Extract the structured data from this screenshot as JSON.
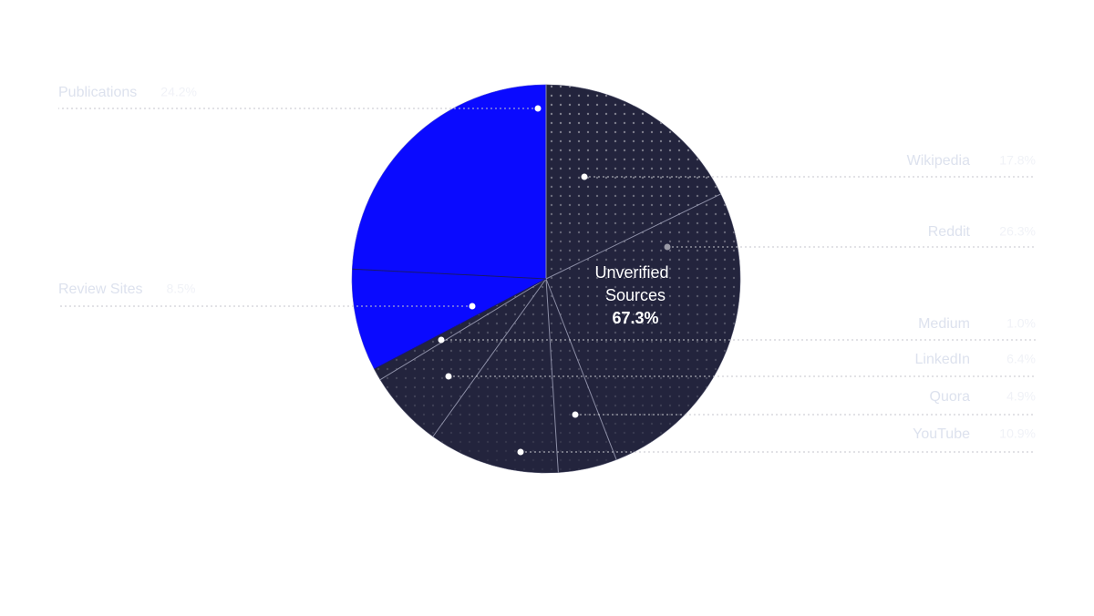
{
  "chart_data": {
    "type": "pie",
    "categories": [
      "Wikipedia",
      "Reddit",
      "Quora",
      "YouTube",
      "LinkedIn",
      "Medium",
      "Review Sites",
      "Publications"
    ],
    "values": [
      17.8,
      26.3,
      4.9,
      10.9,
      6.4,
      1.0,
      8.5,
      24.2
    ],
    "value_labels": [
      "17.8%",
      "26.3%",
      "4.9%",
      "10.9%",
      "6.4%",
      "1.0%",
      "8.5%",
      "24.2%"
    ],
    "colors": [
      "#23243d",
      "#23243d",
      "#23243d",
      "#23243d",
      "#23243d",
      "#23243d",
      "#0a0aff",
      "#0a0aff"
    ],
    "center_label": [
      "Unverified",
      "Sources"
    ],
    "center_value": "67.3%"
  }
}
